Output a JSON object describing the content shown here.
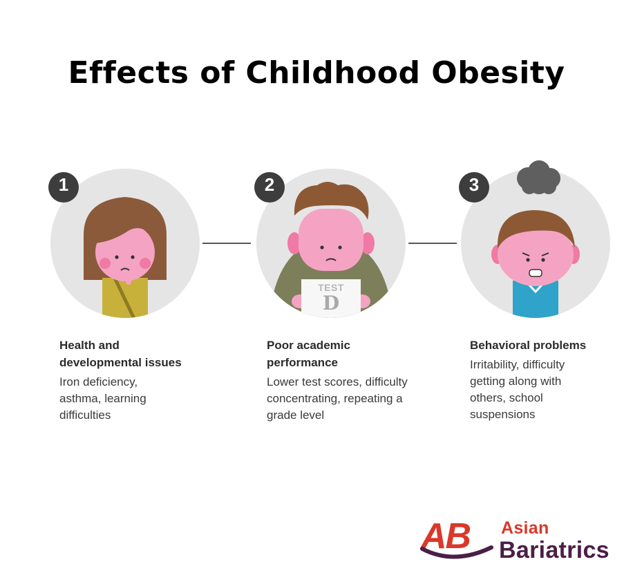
{
  "title": "Effects of Childhood Obesity",
  "items": [
    {
      "number": "1",
      "heading": "Health and developmental issues",
      "description": "Iron deficiency, asthma, learning difficulties",
      "icon": "girl-sad-icon"
    },
    {
      "number": "2",
      "heading": "Poor academic performance",
      "description": "Lower test scores, difficulty concentrating, repeating a grade level",
      "icon": "boy-test-icon",
      "test_label": "TEST",
      "test_grade": "D"
    },
    {
      "number": "3",
      "heading": "Behavioral problems",
      "description": "Irritability, difficulty getting along with others, school suspensions",
      "icon": "boy-upset-icon"
    }
  ],
  "brand": {
    "mark": "AB",
    "line1": "Asian",
    "line2": "Bariatrics",
    "colors": {
      "red": "#d9382a",
      "purple": "#4a1f47"
    }
  },
  "colors": {
    "circle_bg": "#e5e5e5",
    "badge": "#3d3d3d",
    "skin": "#f5a3c3",
    "hair_girl": "#8b5a3a",
    "hair_boy": "#8d5934",
    "shirt_yellow": "#c7b13a",
    "jacket_olive": "#7d7f5b",
    "shirt_blue": "#2fa3c9"
  }
}
